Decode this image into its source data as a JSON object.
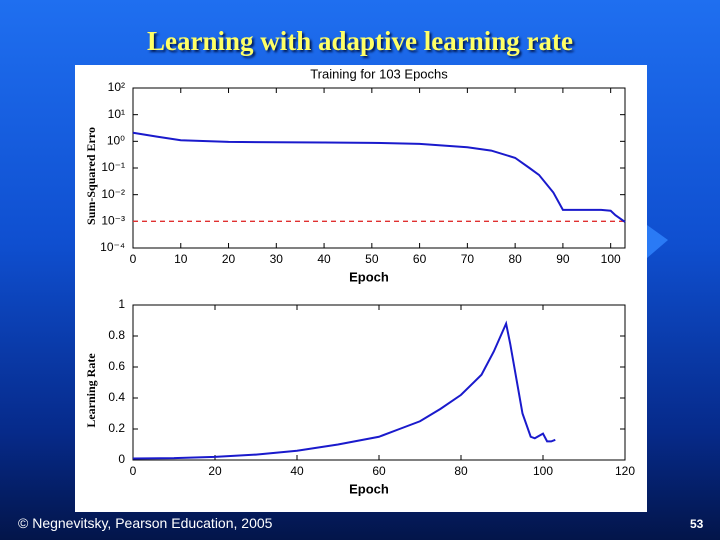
{
  "title": "Learning with adaptive learning rate",
  "footer": "© Negnevitsky, Pearson Education, 2005",
  "page_number": "53",
  "chart_data": [
    {
      "type": "line",
      "title": "Training for 103 Epochs",
      "xlabel": "Epoch",
      "ylabel": "Sum-Squared Erro",
      "log_y": true,
      "xlim": [
        0,
        103
      ],
      "xticks": [
        0,
        10,
        20,
        30,
        40,
        50,
        60,
        70,
        80,
        90,
        100
      ],
      "ylim": [
        0.0001,
        100
      ],
      "yticks": [
        {
          "value": 100,
          "label": "10²"
        },
        {
          "value": 10,
          "label": "10¹"
        },
        {
          "value": 1,
          "label": "10⁰"
        },
        {
          "value": 0.1,
          "label": "10⁻¹"
        },
        {
          "value": 0.01,
          "label": "10⁻²"
        },
        {
          "value": 0.001,
          "label": "10⁻³"
        },
        {
          "value": 0.0001,
          "label": "10⁻⁴"
        }
      ],
      "goal": 0.001,
      "goal_color": "#e03030",
      "series": [
        {
          "color": "#1a1acc",
          "x": [
            0,
            5,
            10,
            20,
            30,
            40,
            50,
            60,
            70,
            75,
            80,
            83,
            85,
            88,
            90,
            92,
            95,
            98,
            100,
            101,
            103
          ],
          "values": [
            2.1,
            1.5,
            1.1,
            0.95,
            0.92,
            0.9,
            0.88,
            0.8,
            0.6,
            0.45,
            0.24,
            0.1,
            0.055,
            0.012,
            0.0027,
            0.0027,
            0.0027,
            0.0027,
            0.0025,
            0.0017,
            0.00095
          ]
        }
      ]
    },
    {
      "type": "line",
      "xlabel": "Epoch",
      "ylabel": "Learning Rate",
      "xlim": [
        0,
        120
      ],
      "xticks": [
        0,
        20,
        40,
        60,
        80,
        100,
        120
      ],
      "ylim": [
        0,
        1
      ],
      "yticks": [
        0,
        0.2,
        0.4,
        0.6,
        0.8,
        1
      ],
      "series": [
        {
          "color": "#1a1acc",
          "x": [
            0,
            10,
            20,
            30,
            40,
            50,
            60,
            65,
            70,
            75,
            80,
            85,
            88,
            91,
            92,
            93,
            95,
            97,
            98,
            100,
            101,
            102,
            103
          ],
          "values": [
            0.01,
            0.012,
            0.02,
            0.035,
            0.06,
            0.1,
            0.15,
            0.2,
            0.25,
            0.33,
            0.42,
            0.55,
            0.7,
            0.88,
            0.75,
            0.6,
            0.3,
            0.15,
            0.14,
            0.17,
            0.12,
            0.12,
            0.13
          ]
        }
      ]
    }
  ]
}
